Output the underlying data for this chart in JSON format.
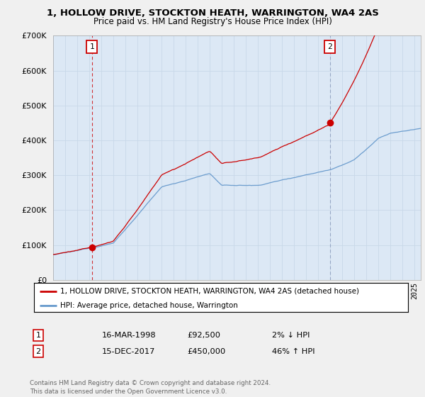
{
  "title_line1": "1, HOLLOW DRIVE, STOCKTON HEATH, WARRINGTON, WA4 2AS",
  "title_line2": "Price paid vs. HM Land Registry's House Price Index (HPI)",
  "background_color": "#f0f0f0",
  "plot_bg_color": "#dce8f5",
  "red_color": "#cc0000",
  "blue_color": "#6699cc",
  "sale1_t": 1998.21,
  "sale1_value": 92500,
  "sale2_t": 2017.96,
  "sale2_value": 450000,
  "ylim_max": 700000,
  "ylim_min": 0,
  "xlim_min": 1995.0,
  "xlim_max": 2025.5,
  "legend_line1": "1, HOLLOW DRIVE, STOCKTON HEATH, WARRINGTON, WA4 2AS (detached house)",
  "legend_line2": "HPI: Average price, detached house, Warrington",
  "table_row1_num": "1",
  "table_row1_date": "16-MAR-1998",
  "table_row1_price": "£92,500",
  "table_row1_hpi": "2% ↓ HPI",
  "table_row2_num": "2",
  "table_row2_date": "15-DEC-2017",
  "table_row2_price": "£450,000",
  "table_row2_hpi": "46% ↑ HPI",
  "footer": "Contains HM Land Registry data © Crown copyright and database right 2024.\nThis data is licensed under the Open Government Licence v3.0."
}
